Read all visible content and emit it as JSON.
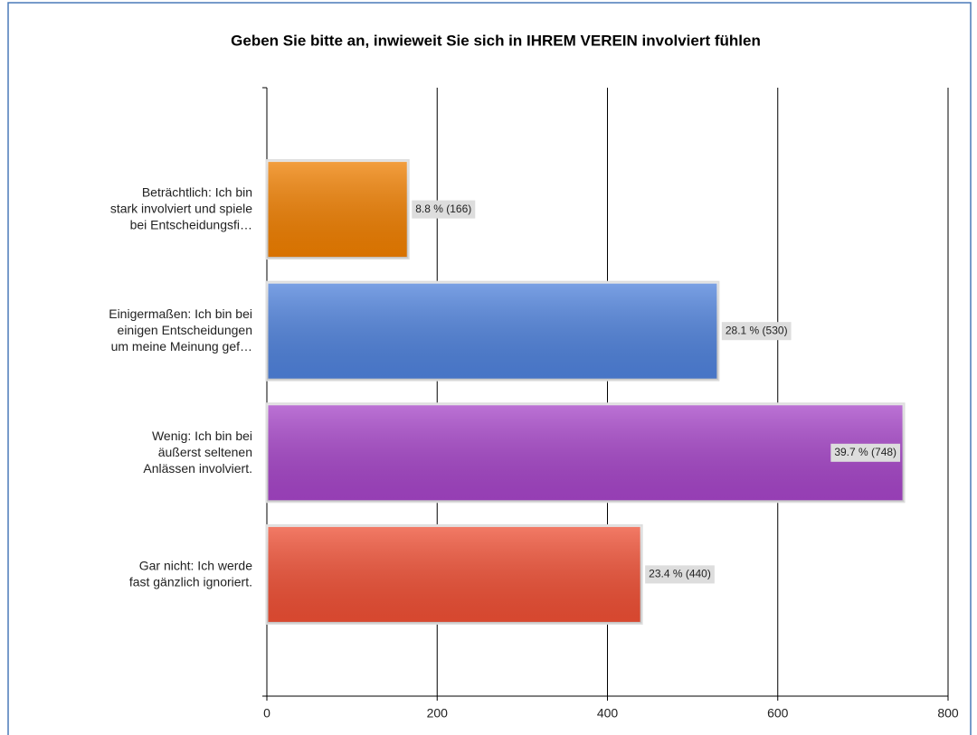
{
  "chart_data": {
    "type": "bar",
    "orientation": "horizontal",
    "title": "Geben Sie bitte an, inwieweit Sie sich in IHREM VEREIN involviert fühlen",
    "categories": [
      "Beträchtlich: Ich bin\nstark involviert und spiele\nbei Entscheidungsfi…",
      "Einigermaßen: Ich bin bei\neinigen Entscheidungen\num meine Meinung gef…",
      "Wenig: Ich bin bei\näußerst seltenen\nAnlässen involviert.",
      "Gar nicht: Ich werde\nfast gänzlich ignoriert."
    ],
    "values": [
      166,
      530,
      748,
      440
    ],
    "value_labels": [
      "8.8 % (166)",
      "28.1 % (530)",
      "39.7 % (748)",
      "23.4 % (440)"
    ],
    "colors": [
      "#f07f00",
      "#4f82dc",
      "#a645c8",
      "#ef4f34"
    ],
    "xlim": [
      0,
      800
    ],
    "xticks": [
      0,
      200,
      400,
      600,
      800
    ],
    "grid": true
  }
}
